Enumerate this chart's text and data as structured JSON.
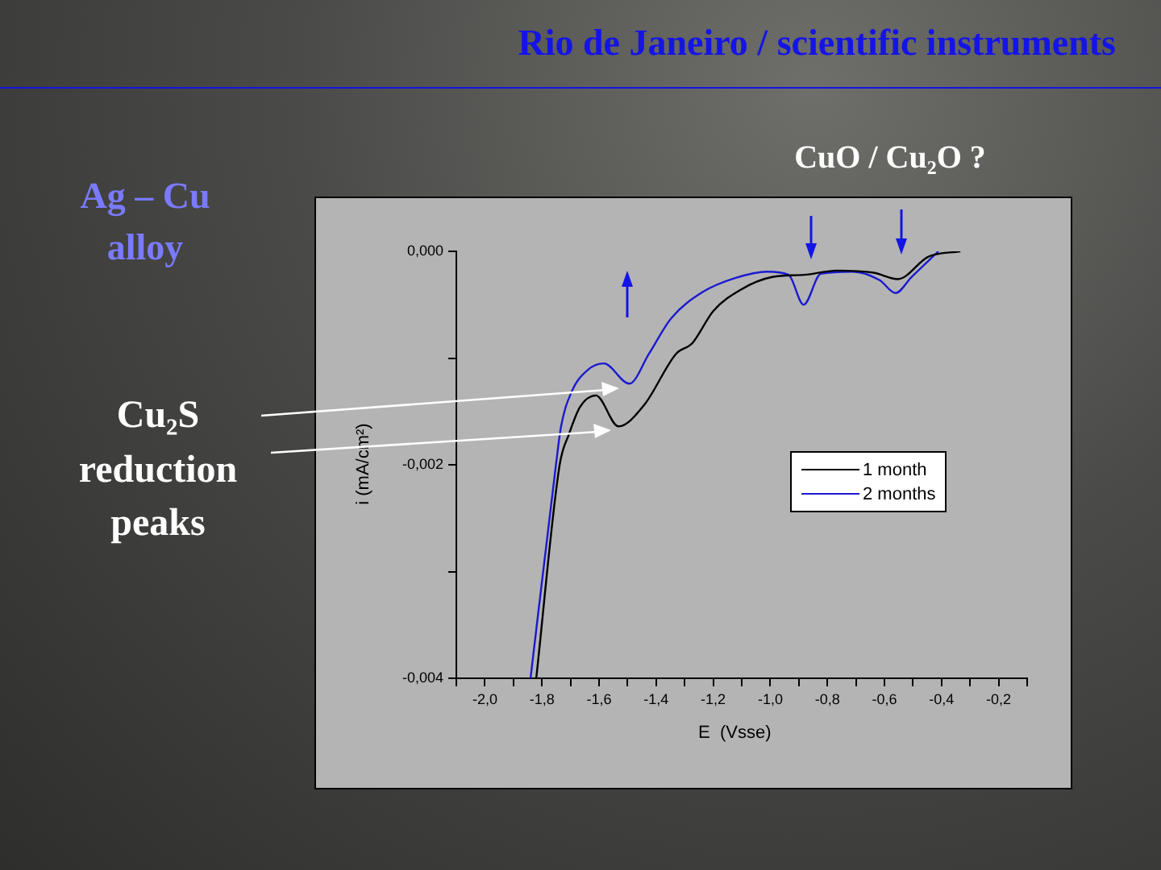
{
  "chart_data": {
    "type": "line",
    "title": "Rio de Janeiro / scientific instruments",
    "xlabel": "E  (Vsse)",
    "ylabel": "i (mA/cm²)",
    "annotations": [
      "Ag – Cu alloy",
      "CuO / Cu₂O ?",
      "Cu₂S reduction peaks"
    ],
    "xlim": [
      -2.1,
      -0.1
    ],
    "xticks": [
      {
        "value": -2.1,
        "label": null
      },
      {
        "value": -2.0,
        "label": "-2,0"
      },
      {
        "value": -1.9,
        "label": null
      },
      {
        "value": -1.8,
        "label": "-1,8"
      },
      {
        "value": -1.7,
        "label": null
      },
      {
        "value": -1.6,
        "label": "-1,6"
      },
      {
        "value": -1.5,
        "label": null
      },
      {
        "value": -1.4,
        "label": "-1,4"
      },
      {
        "value": -1.3,
        "label": null
      },
      {
        "value": -1.2,
        "label": "-1,2"
      },
      {
        "value": -1.1,
        "label": null
      },
      {
        "value": -1.0,
        "label": "-1,0"
      },
      {
        "value": -0.9,
        "label": null
      },
      {
        "value": -0.8,
        "label": "-0,8"
      },
      {
        "value": -0.7,
        "label": null
      },
      {
        "value": -0.6,
        "label": "-0,6"
      },
      {
        "value": -0.5,
        "label": null
      },
      {
        "value": -0.4,
        "label": "-0,4"
      },
      {
        "value": -0.3,
        "label": null
      },
      {
        "value": -0.2,
        "label": "-0,2"
      },
      {
        "value": -0.1,
        "label": null
      }
    ],
    "ylim": [
      -0.004,
      0.0
    ],
    "yticks": [
      {
        "value": -0.004,
        "label": "-0,004"
      },
      {
        "value": -0.003,
        "label": null
      },
      {
        "value": -0.002,
        "label": "-0,002"
      },
      {
        "value": -0.001,
        "label": null
      },
      {
        "value": 0.0,
        "label": "0,000"
      }
    ],
    "grid": false,
    "legend": "right",
    "marker": "none",
    "line_style": "solid",
    "series": [
      {
        "name": "1 month",
        "color": "#000000",
        "x": [
          -1.82,
          -1.738,
          -1.705,
          -1.667,
          -1.611,
          -1.532,
          -1.442,
          -1.33,
          -1.273,
          -1.2,
          -1.104,
          -0.992,
          -0.88,
          -0.767,
          -0.638,
          -0.553,
          -0.446,
          -0.334
        ],
        "values": [
          -0.004,
          -0.002,
          -0.00171,
          -0.00146,
          -0.00135,
          -0.00164,
          -0.00144,
          -0.00096,
          -0.00086,
          -0.00056,
          -0.00036,
          -0.00024,
          -0.00022,
          -0.00018,
          -0.0002,
          -0.00026,
          -5e-05,
          0.0
        ]
      },
      {
        "name": "2 months",
        "color": "#1a1ad0",
        "x": [
          -1.84,
          -1.751,
          -1.733,
          -1.695,
          -1.639,
          -1.583,
          -1.494,
          -1.425,
          -1.348,
          -1.236,
          -1.123,
          -1.011,
          -0.936,
          -0.883,
          -0.823,
          -0.711,
          -0.617,
          -0.561,
          -0.505,
          -0.411
        ],
        "values": [
          -0.004,
          -0.002,
          -0.00164,
          -0.00131,
          -0.00111,
          -0.00105,
          -0.00124,
          -0.00096,
          -0.00063,
          -0.00038,
          -0.00025,
          -0.00019,
          -0.00022,
          -0.0005,
          -0.00021,
          -0.00019,
          -0.00027,
          -0.00039,
          -0.00024,
          0.0
        ]
      }
    ]
  }
}
